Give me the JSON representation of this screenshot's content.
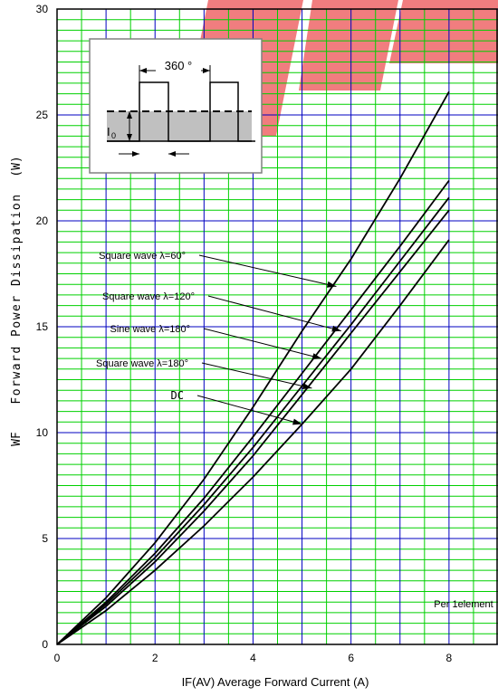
{
  "chart_data": {
    "type": "line",
    "xlabel": "IF(AV)   Average Forward Current      (A)",
    "ylabel_parts": [
      "WF",
      "Forward Power Dissipation",
      "(W)"
    ],
    "xlim": [
      0,
      9
    ],
    "ylim": [
      0,
      30
    ],
    "x_ticks": [
      0,
      2,
      4,
      6,
      8
    ],
    "y_ticks": [
      0,
      5,
      10,
      15,
      20,
      25,
      30
    ],
    "grid": true,
    "note": "Per 1element",
    "series": [
      {
        "name": "Square wave λ=60°",
        "x": [
          0,
          1,
          2,
          3,
          4,
          5,
          6,
          7,
          8
        ],
        "y": [
          0,
          2.2,
          4.8,
          7.8,
          11.2,
          14.8,
          18.2,
          22.0,
          26.1
        ]
      },
      {
        "name": "Square wave λ=120°",
        "x": [
          0,
          1,
          2,
          3,
          4,
          5,
          6,
          7,
          8
        ],
        "y": [
          0,
          2.0,
          4.3,
          6.9,
          9.8,
          12.8,
          15.8,
          18.8,
          21.9
        ]
      },
      {
        "name": "Sine wave λ=180°",
        "x": [
          0,
          1,
          2,
          3,
          4,
          5,
          6,
          7,
          8
        ],
        "y": [
          0,
          1.9,
          4.1,
          6.6,
          9.3,
          12.2,
          15.1,
          18.1,
          21.1
        ]
      },
      {
        "name": "Square wave λ=180°",
        "x": [
          0,
          1,
          2,
          3,
          4,
          5,
          6,
          7,
          8
        ],
        "y": [
          0,
          1.8,
          3.9,
          6.3,
          8.9,
          11.8,
          14.7,
          17.6,
          20.5
        ]
      },
      {
        "name": "DC",
        "x": [
          0,
          1,
          2,
          3,
          4,
          5,
          6,
          7,
          8
        ],
        "y": [
          0,
          1.6,
          3.5,
          5.6,
          7.9,
          10.4,
          13.0,
          16.0,
          19.1
        ]
      }
    ],
    "annotations": [
      {
        "text": "Square wave λ=60°",
        "target": [
          5.7,
          16.9
        ]
      },
      {
        "text": "Square wave λ=120°",
        "target": [
          5.8,
          14.8
        ]
      },
      {
        "text": "Sine wave λ=180°",
        "target": [
          5.4,
          13.5
        ]
      },
      {
        "text": "Square wave λ=180°",
        "target": [
          5.2,
          12.1
        ]
      },
      {
        "text": "DC",
        "target": [
          5.0,
          10.4
        ]
      }
    ],
    "inset": {
      "period_label": "360 °",
      "current_label": "I",
      "current_sub": "0"
    }
  },
  "colors": {
    "grid_major": "#00d000",
    "grid_vertical": "#0000c0",
    "curve": "#000000",
    "watermark": "#e8262a"
  }
}
